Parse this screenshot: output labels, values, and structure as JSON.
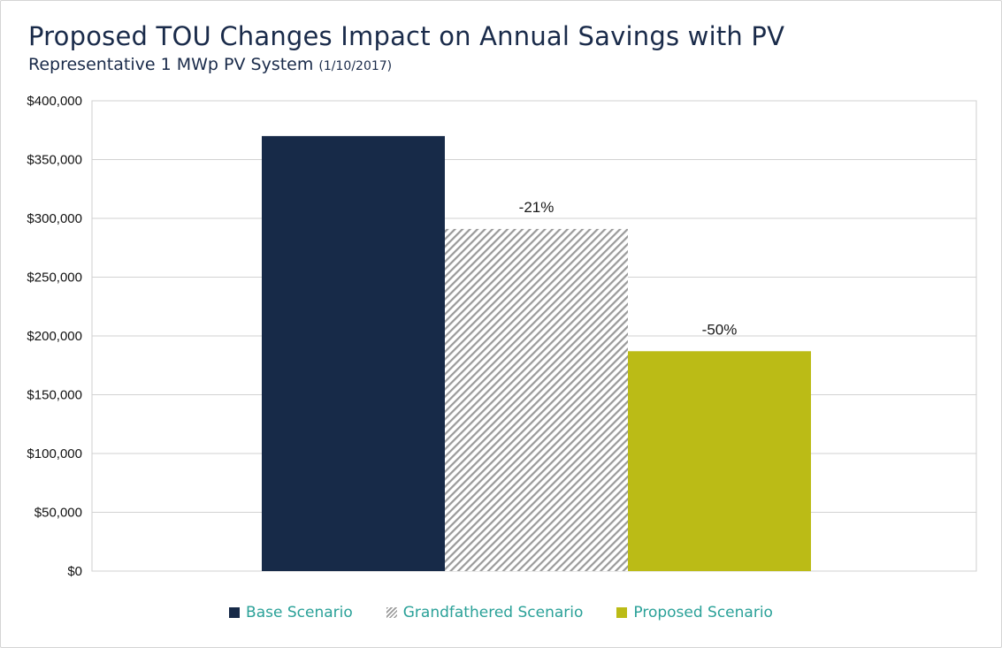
{
  "chart_data": {
    "type": "bar",
    "title": "Proposed TOU Changes Impact on Annual Savings with PV",
    "subtitle": "Representative 1 MWp PV System",
    "subtitle_date": "(1/10/2017)",
    "xlabel": "",
    "ylabel": "",
    "ylim": [
      0,
      400000
    ],
    "yticks": [
      0,
      50000,
      100000,
      150000,
      200000,
      250000,
      300000,
      350000,
      400000
    ],
    "ytick_labels": [
      "$0",
      "$50,000",
      "$100,000",
      "$150,000",
      "$200,000",
      "$250,000",
      "$300,000",
      "$350,000",
      "$400,000"
    ],
    "grid": true,
    "legend_position": "bottom-center",
    "series": [
      {
        "name": "Base Scenario",
        "value": 370000,
        "color": "#172a48",
        "pattern": "solid",
        "label": ""
      },
      {
        "name": "Grandfathered Scenario",
        "value": 291000,
        "color": "#9a9a9a",
        "pattern": "hatch",
        "label": "-21%"
      },
      {
        "name": "Proposed Scenario",
        "value": 187000,
        "color": "#bbbb16",
        "pattern": "solid",
        "label": "-50%"
      }
    ],
    "legend_text_color": "#2aa198"
  }
}
